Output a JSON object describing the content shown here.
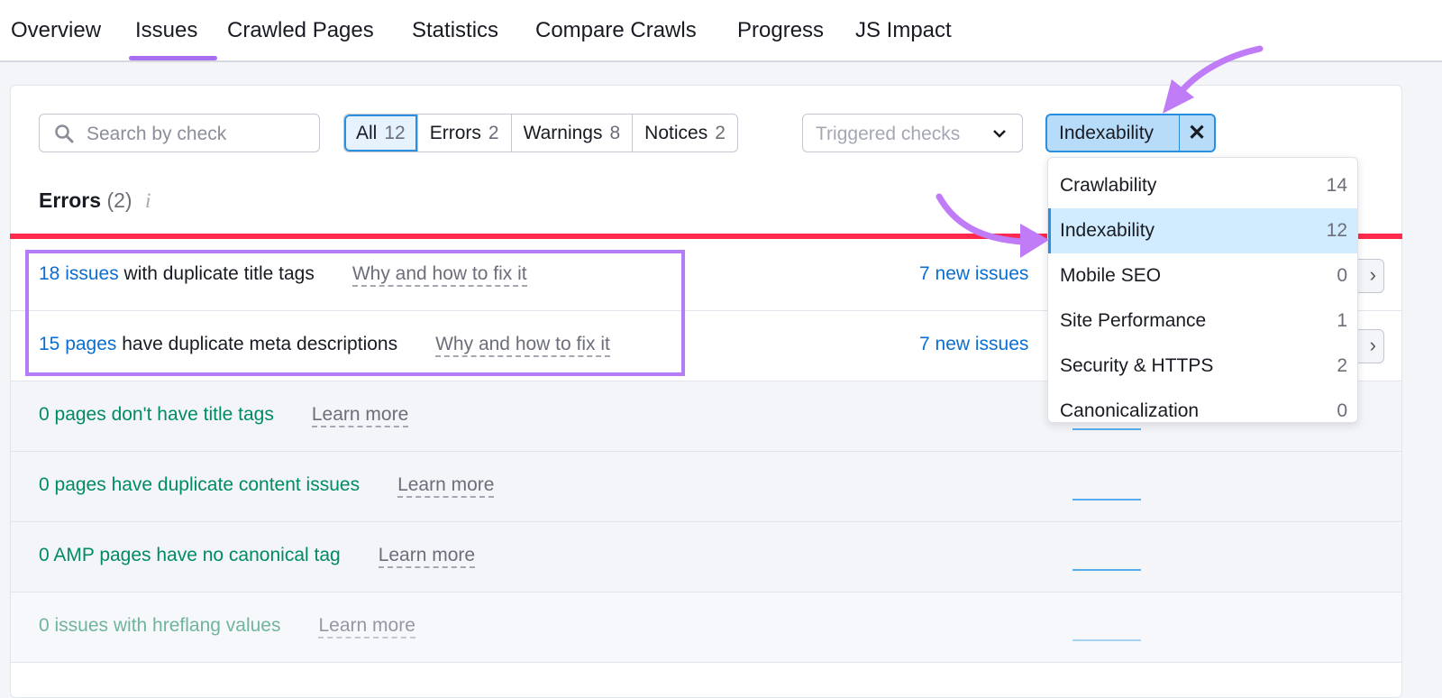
{
  "tabs": [
    "Overview",
    "Issues",
    "Crawled Pages",
    "Statistics",
    "Compare Crawls",
    "Progress",
    "JS Impact"
  ],
  "active_tab": "Issues",
  "search": {
    "placeholder": "Search by check",
    "icon": "search-icon"
  },
  "filters": [
    {
      "label": "All",
      "count": "12"
    },
    {
      "label": "Errors",
      "count": "2"
    },
    {
      "label": "Warnings",
      "count": "8"
    },
    {
      "label": "Notices",
      "count": "2"
    }
  ],
  "triggered": {
    "placeholder": "Triggered checks"
  },
  "category_chip": {
    "label": "Indexability",
    "clear": "✕"
  },
  "errors_heading": {
    "title": "Errors",
    "count": "(2)",
    "info": "i"
  },
  "rows": [
    {
      "count": "18 issues",
      "text": " with duplicate title tags",
      "help": "Why and how to fix it",
      "new": "7 new issues"
    },
    {
      "count": "15 pages",
      "text": " have duplicate meta descriptions",
      "help": "Why and how to fix it",
      "new": "7 new issues"
    },
    {
      "text": "0 pages don't have title tags",
      "help": "Learn more"
    },
    {
      "text": "0 pages have duplicate content issues",
      "help": "Learn more"
    },
    {
      "text": "0 AMP pages have no canonical tag",
      "help": "Learn more"
    },
    {
      "text": "0 issues with hreflang values",
      "help": "Learn more"
    }
  ],
  "dropdown": [
    {
      "label": "Crawlability",
      "count": "14"
    },
    {
      "label": "Indexability",
      "count": "12",
      "selected": true
    },
    {
      "label": "Mobile SEO",
      "count": "0"
    },
    {
      "label": "Site Performance",
      "count": "1"
    },
    {
      "label": "Security & HTTPS",
      "count": "2"
    },
    {
      "label": "Canonicalization",
      "count": "0"
    }
  ],
  "colors": {
    "accent": "#2b8fe0",
    "error_line": "#ff2a4d",
    "annotation": "#b57cf7",
    "link": "#0a6fd1",
    "zero": "#008c61"
  }
}
